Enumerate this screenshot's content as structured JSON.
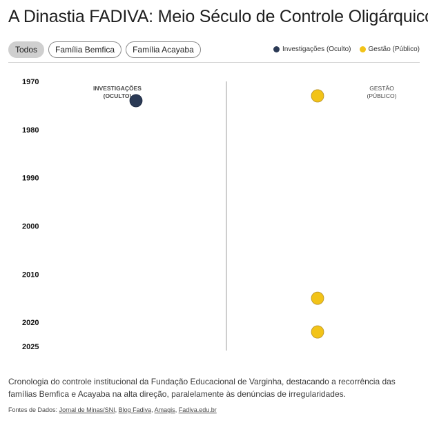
{
  "title": "A Dinastia FADIVA: Meio Século de Controle Oligárquico",
  "filters": [
    {
      "label": "Todos",
      "active": true
    },
    {
      "label": "Família Bemfica",
      "active": false
    },
    {
      "label": "Família Acayaba",
      "active": false
    }
  ],
  "legend": [
    {
      "label": "Investigações (Oculto)",
      "color": "#2b3a55"
    },
    {
      "label": "Gestão (Público)",
      "color": "#f2c318"
    }
  ],
  "chart_data": {
    "type": "scatter",
    "title": "A Dinastia FADIVA: Meio Século de Controle Oligárquico",
    "y_axis": {
      "ticks": [
        1970,
        1980,
        1990,
        2000,
        2010,
        2020,
        2025
      ],
      "range": [
        1970,
        2025
      ],
      "direction": "top-to-bottom"
    },
    "columns": [
      {
        "label_lines": [
          "INVESTIGAÇÕES",
          "(OCULTO)"
        ],
        "series": "Investigações (Oculto)"
      },
      {
        "label_lines": [
          "GESTÃO",
          "(PÚBLICO)"
        ],
        "series": "Gestão (Público)"
      }
    ],
    "series": [
      {
        "name": "Investigações (Oculto)",
        "color": "#2b3a55",
        "points": [
          1974
        ]
      },
      {
        "name": "Gestão (Público)",
        "color": "#f2c318",
        "points": [
          1973,
          2015,
          2022
        ]
      }
    ]
  },
  "description": "Cronologia do controle institucional da Fundação Educacional de Varginha, destacando a recorrência das famílias Bemfica e Acayaba na alta direção, paralelamente às denúncias de irregularidades.",
  "sources": {
    "prefix": "Fontes de Dados:",
    "links": [
      "Jornal de Minas/SNI",
      "Blog Fadiva",
      "Amagis",
      "Fadiva.edu.br"
    ]
  }
}
